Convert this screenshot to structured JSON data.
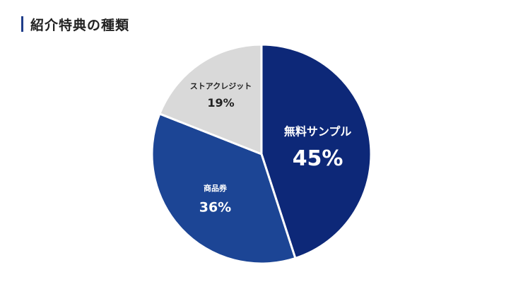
{
  "title": "紹介特典の種類",
  "colors": {
    "accent": "#1f3d8a",
    "title_text": "#222222"
  },
  "chart_data": {
    "type": "pie",
    "title": "紹介特典の種類",
    "start_angle_deg": 0,
    "direction": "clockwise",
    "slices": [
      {
        "label": "無料サンプル",
        "value": 45,
        "value_label": "45%",
        "color": "#0d2878",
        "text_color": "#ffffff"
      },
      {
        "label": "商品券",
        "value": 36,
        "value_label": "36%",
        "color": "#1c4595",
        "text_color": "#ffffff"
      },
      {
        "label": "ストアクレジット",
        "value": 19,
        "value_label": "19%",
        "color": "#d9d9d9",
        "text_color": "#222222"
      }
    ]
  }
}
